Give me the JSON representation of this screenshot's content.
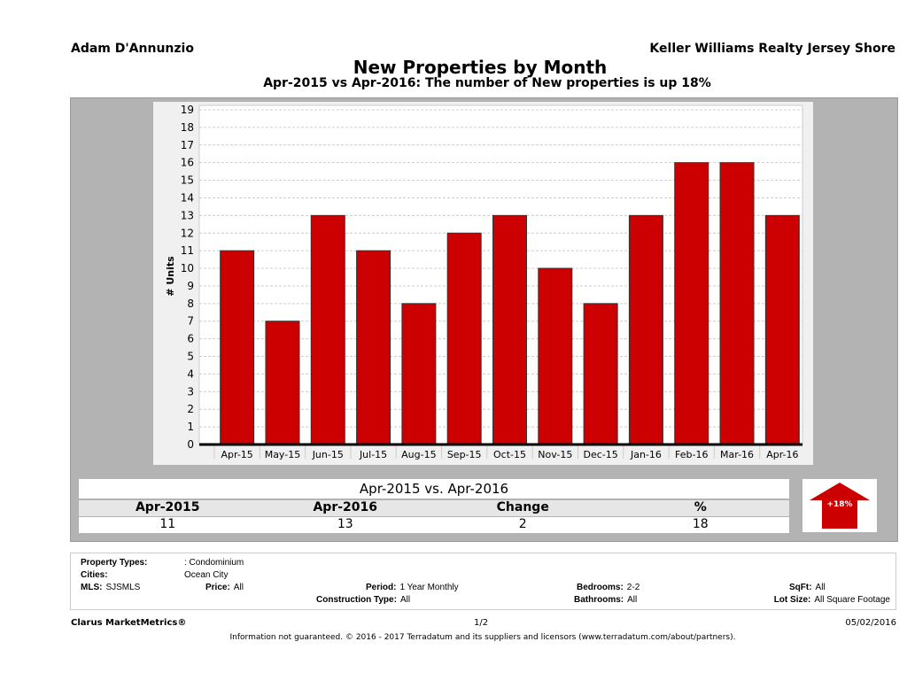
{
  "header": {
    "agent": "Adam D'Annunzio",
    "brokerage": "Keller Williams Realty Jersey Shore"
  },
  "chart_data": {
    "type": "bar",
    "title": "New Properties by Month",
    "subtitle": "Apr-2015 vs Apr-2016: The number of New  properties is up 18%",
    "ylabel": "# Units",
    "xlabel": "",
    "ylim": [
      0,
      19
    ],
    "yticks": [
      0,
      1,
      2,
      3,
      4,
      5,
      6,
      7,
      8,
      9,
      10,
      11,
      12,
      13,
      14,
      15,
      16,
      17,
      18,
      19
    ],
    "grid": true,
    "bar_color": "#cc0000",
    "categories": [
      "Apr-15",
      "May-15",
      "Jun-15",
      "Jul-15",
      "Aug-15",
      "Sep-15",
      "Oct-15",
      "Nov-15",
      "Dec-15",
      "Jan-16",
      "Feb-16",
      "Mar-16",
      "Apr-16"
    ],
    "values": [
      11,
      7,
      13,
      11,
      8,
      12,
      13,
      10,
      8,
      13,
      16,
      16,
      13
    ]
  },
  "comparison": {
    "title": "Apr-2015 vs. Apr-2016",
    "headers": [
      "Apr-2015",
      "Apr-2016",
      "Change",
      "%"
    ],
    "values": [
      "11",
      "13",
      "2",
      "18"
    ],
    "badge": "+18%",
    "badge_icon": "up-arrow-icon"
  },
  "filters": {
    "property_types_label": "Property Types:",
    "property_types": ": Condominium",
    "cities_label": "Cities:",
    "cities": "Ocean City",
    "mls_label": "MLS:",
    "mls": "SJSMLS",
    "price_label": "Price:",
    "price": "All",
    "period_label": "Period:",
    "period": "1 Year Monthly",
    "bedrooms_label": "Bedrooms:",
    "bedrooms": "2-2",
    "sqft_label": "SqFt:",
    "sqft": "All",
    "construction_label": "Construction Type:",
    "construction": "All",
    "bathrooms_label": "Bathrooms:",
    "bathrooms": "All",
    "lot_label": "Lot Size:",
    "lot": "All Square Footage"
  },
  "footer": {
    "brand": "Clarus MarketMetrics®",
    "page": "1/2",
    "date": "05/02/2016",
    "disclaimer": "Information not guaranteed. © 2016 - 2017 Terradatum and its suppliers and licensors (www.terradatum.com/about/partners)."
  }
}
